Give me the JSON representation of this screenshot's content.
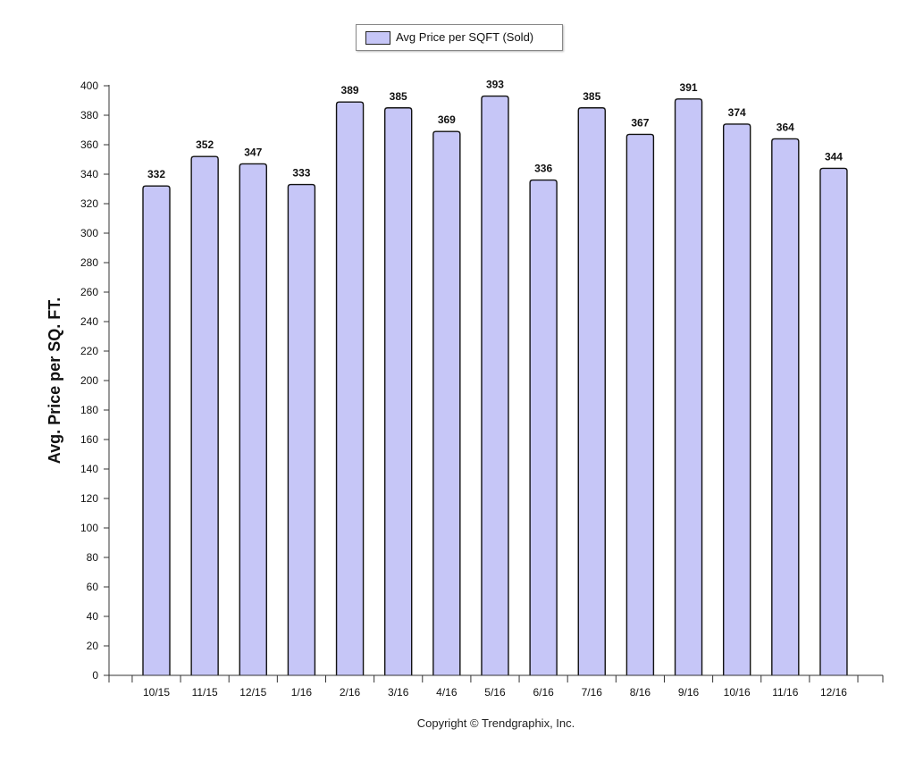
{
  "chart_data": {
    "type": "bar",
    "categories": [
      "10/15",
      "11/15",
      "12/15",
      "1/16",
      "2/16",
      "3/16",
      "4/16",
      "5/16",
      "6/16",
      "7/16",
      "8/16",
      "9/16",
      "10/16",
      "11/16",
      "12/16"
    ],
    "series": [
      {
        "name": "Avg Price per SQFT (Sold)",
        "values": [
          332,
          352,
          347,
          333,
          389,
          385,
          369,
          393,
          336,
          385,
          367,
          391,
          374,
          364,
          344
        ]
      }
    ],
    "ylabel": "Avg. Price per SQ. FT.",
    "xlabel": "",
    "ylim": [
      0,
      400
    ],
    "yticks": [
      0,
      20,
      40,
      60,
      80,
      100,
      120,
      140,
      160,
      180,
      200,
      220,
      240,
      260,
      280,
      300,
      320,
      340,
      360,
      380,
      400
    ],
    "data_labels": true,
    "legend_position": "top-center",
    "grid": false,
    "bar_color": "#c6c6f7"
  },
  "footer": {
    "copyright": "Copyright © Trendgraphix, Inc."
  }
}
